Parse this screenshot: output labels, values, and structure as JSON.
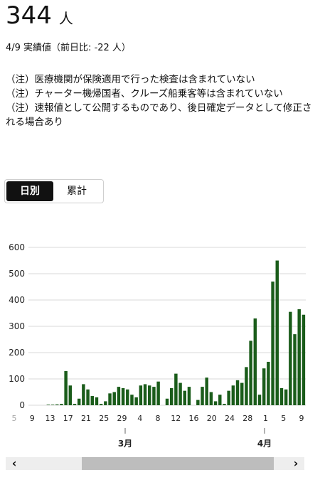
{
  "summary": {
    "value": "344",
    "unit": "人",
    "subtitle": "4/9 実績値（前日比: -22 人）"
  },
  "notes": [
    "（注）医療機関が保険適用で行った検査は含まれていない",
    "（注）チャーター機帰国者、クルーズ船乗客等は含まれていない",
    "（注）速報値として公開するものであり、後日確定データとして修正される場合あり"
  ],
  "tabs": {
    "daily": "日別",
    "cumulative": "累計",
    "active": "daily"
  },
  "scroll": {
    "left": "‹",
    "right": "›"
  },
  "chart_data": {
    "type": "bar",
    "title": "",
    "xlabel": "",
    "ylabel": "",
    "ylim": [
      0,
      600
    ],
    "yticks": [
      0,
      100,
      200,
      300,
      400,
      500,
      600
    ],
    "grid": true,
    "bar_color": "#1a5c1a",
    "x_tick_labels": [
      "5",
      "9",
      "13",
      "17",
      "21",
      "25",
      "29",
      "4",
      "8",
      "12",
      "16",
      "20",
      "24",
      "28",
      "1",
      "5",
      "9"
    ],
    "month_labels": [
      "3月",
      "4月"
    ],
    "series": [
      {
        "values": [
          0,
          0,
          0,
          0,
          2,
          2,
          3,
          5,
          130,
          75,
          5,
          25,
          80,
          60,
          35,
          30,
          5,
          15,
          45,
          50,
          70,
          65,
          60,
          40,
          30,
          75,
          80,
          75,
          70,
          90,
          0,
          25,
          65,
          120,
          85,
          55,
          70,
          0,
          20,
          70,
          105,
          50,
          15,
          40,
          5,
          55,
          75,
          95,
          85,
          145,
          245,
          330,
          40,
          140,
          165,
          470,
          550,
          65,
          60,
          355,
          270,
          365,
          344
        ]
      }
    ]
  }
}
